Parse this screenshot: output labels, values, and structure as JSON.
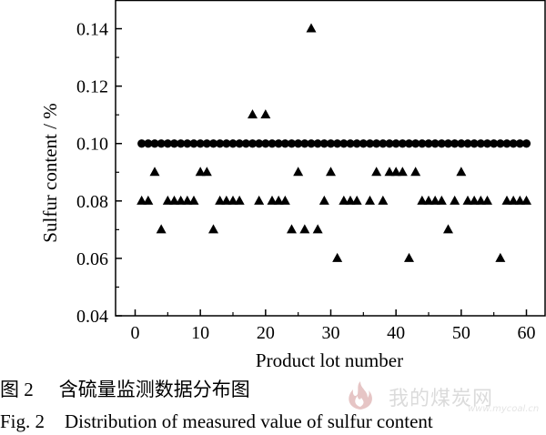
{
  "chart_data": {
    "type": "scatter",
    "xlabel": "Product lot number",
    "ylabel": "Sulfur content / %",
    "xlim": [
      -3,
      63
    ],
    "ylim": [
      0.04,
      0.15
    ],
    "xticks": [
      "0",
      "10",
      "20",
      "30",
      "40",
      "50",
      "60"
    ],
    "yticks": [
      "0.04",
      "0.06",
      "0.08",
      "0.10",
      "0.12",
      "0.14"
    ],
    "grid": false,
    "legend": "none",
    "series": [
      {
        "marker": "circle",
        "color": "#000000",
        "points": [
          [
            1,
            0.1
          ],
          [
            2,
            0.1
          ],
          [
            3,
            0.1
          ],
          [
            4,
            0.1
          ],
          [
            5,
            0.1
          ],
          [
            6,
            0.1
          ],
          [
            7,
            0.1
          ],
          [
            8,
            0.1
          ],
          [
            9,
            0.1
          ],
          [
            10,
            0.1
          ],
          [
            11,
            0.1
          ],
          [
            12,
            0.1
          ],
          [
            13,
            0.1
          ],
          [
            14,
            0.1
          ],
          [
            15,
            0.1
          ],
          [
            16,
            0.1
          ],
          [
            17,
            0.1
          ],
          [
            18,
            0.1
          ],
          [
            19,
            0.1
          ],
          [
            20,
            0.1
          ],
          [
            21,
            0.1
          ],
          [
            22,
            0.1
          ],
          [
            23,
            0.1
          ],
          [
            24,
            0.1
          ],
          [
            25,
            0.1
          ],
          [
            26,
            0.1
          ],
          [
            27,
            0.1
          ],
          [
            28,
            0.1
          ],
          [
            29,
            0.1
          ],
          [
            30,
            0.1
          ],
          [
            31,
            0.1
          ],
          [
            32,
            0.1
          ],
          [
            33,
            0.1
          ],
          [
            34,
            0.1
          ],
          [
            35,
            0.1
          ],
          [
            36,
            0.1
          ],
          [
            37,
            0.1
          ],
          [
            38,
            0.1
          ],
          [
            39,
            0.1
          ],
          [
            40,
            0.1
          ],
          [
            41,
            0.1
          ],
          [
            42,
            0.1
          ],
          [
            43,
            0.1
          ],
          [
            44,
            0.1
          ],
          [
            45,
            0.1
          ],
          [
            46,
            0.1
          ],
          [
            47,
            0.1
          ],
          [
            48,
            0.1
          ],
          [
            49,
            0.1
          ],
          [
            50,
            0.1
          ],
          [
            51,
            0.1
          ],
          [
            52,
            0.1
          ],
          [
            53,
            0.1
          ],
          [
            54,
            0.1
          ],
          [
            55,
            0.1
          ],
          [
            56,
            0.1
          ],
          [
            57,
            0.1
          ],
          [
            58,
            0.1
          ],
          [
            59,
            0.1
          ],
          [
            60,
            0.1
          ]
        ]
      },
      {
        "marker": "triangle",
        "color": "#000000",
        "points": [
          [
            1,
            0.08
          ],
          [
            2,
            0.08
          ],
          [
            3,
            0.09
          ],
          [
            4,
            0.07
          ],
          [
            5,
            0.08
          ],
          [
            6,
            0.08
          ],
          [
            7,
            0.08
          ],
          [
            8,
            0.08
          ],
          [
            9,
            0.08
          ],
          [
            10,
            0.09
          ],
          [
            11,
            0.09
          ],
          [
            12,
            0.07
          ],
          [
            13,
            0.08
          ],
          [
            14,
            0.08
          ],
          [
            15,
            0.08
          ],
          [
            16,
            0.08
          ],
          [
            18,
            0.11
          ],
          [
            19,
            0.08
          ],
          [
            20,
            0.11
          ],
          [
            21,
            0.08
          ],
          [
            22,
            0.08
          ],
          [
            23,
            0.08
          ],
          [
            24,
            0.07
          ],
          [
            25,
            0.09
          ],
          [
            26,
            0.07
          ],
          [
            27,
            0.14
          ],
          [
            28,
            0.07
          ],
          [
            29,
            0.08
          ],
          [
            30,
            0.09
          ],
          [
            31,
            0.06
          ],
          [
            32,
            0.08
          ],
          [
            33,
            0.08
          ],
          [
            34,
            0.08
          ],
          [
            36,
            0.08
          ],
          [
            37,
            0.09
          ],
          [
            38,
            0.08
          ],
          [
            39,
            0.09
          ],
          [
            40,
            0.09
          ],
          [
            41,
            0.09
          ],
          [
            42,
            0.06
          ],
          [
            43,
            0.09
          ],
          [
            44,
            0.08
          ],
          [
            45,
            0.08
          ],
          [
            46,
            0.08
          ],
          [
            47,
            0.08
          ],
          [
            48,
            0.07
          ],
          [
            49,
            0.08
          ],
          [
            50,
            0.09
          ],
          [
            51,
            0.08
          ],
          [
            52,
            0.08
          ],
          [
            53,
            0.08
          ],
          [
            54,
            0.08
          ],
          [
            56,
            0.06
          ],
          [
            57,
            0.08
          ],
          [
            58,
            0.08
          ],
          [
            59,
            0.08
          ],
          [
            60,
            0.08
          ]
        ]
      }
    ]
  },
  "captions": {
    "cn_fig": "图 2",
    "cn_text": "含硫量监测数据分布图",
    "en_fig": "Fig. 2",
    "en_text": "Distribution of measured value of sulfur content"
  },
  "watermark": {
    "text": "我的煤炭网",
    "url": "www.mycoal.cn",
    "color": "#b0b0b0"
  }
}
